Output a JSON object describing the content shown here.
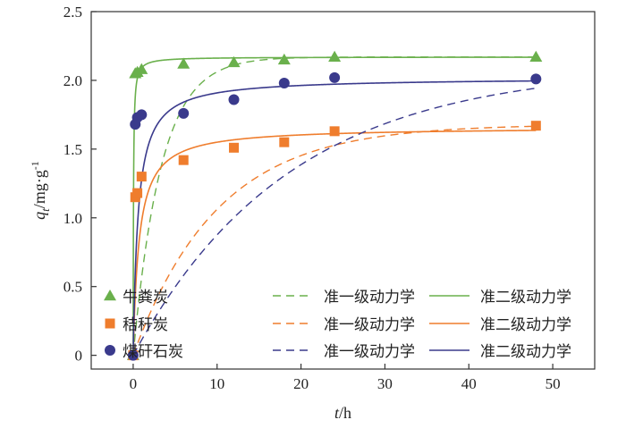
{
  "chart_data": {
    "type": "scatter",
    "xlabel": {
      "var": "t",
      "unit": "/h"
    },
    "ylabel": {
      "var": "q",
      "sub": "t",
      "unit": "/mg·g",
      "sup": "-1"
    },
    "xlim": [
      -5,
      55
    ],
    "ylim": [
      -0.1,
      2.5
    ],
    "xticks": [
      0,
      10,
      20,
      30,
      40,
      50
    ],
    "yticks": [
      0,
      0.5,
      1.0,
      1.5,
      2.0,
      2.5
    ],
    "yticklabels": [
      "0",
      "0.5",
      "1.0",
      "1.5",
      "2.0",
      "2.5"
    ],
    "grid": false,
    "legend_position": "bottom-left",
    "series": [
      {
        "name": "牛粪炭",
        "color": "#6ab04c",
        "marker": "triangle",
        "x": [
          0,
          0.25,
          0.5,
          1,
          6,
          12,
          18,
          24,
          48
        ],
        "y": [
          0,
          2.05,
          2.06,
          2.08,
          2.12,
          2.13,
          2.15,
          2.17,
          2.17
        ],
        "pfo": {
          "label": "准一级动力学",
          "qe": 2.17,
          "k": 0.3
        },
        "pso": {
          "label": "准二级动力学",
          "qe": 2.17,
          "k": 12
        }
      },
      {
        "name": "秸秆炭",
        "color": "#ef7d2d",
        "marker": "square",
        "x": [
          0,
          0.25,
          0.5,
          1,
          6,
          12,
          18,
          24,
          48
        ],
        "y": [
          0,
          1.15,
          1.18,
          1.3,
          1.42,
          1.51,
          1.55,
          1.63,
          1.67
        ],
        "pfo": {
          "label": "准一级动力学",
          "qe": 1.68,
          "k": 0.1
        },
        "pso": {
          "label": "准二级动力学",
          "qe": 1.66,
          "k": 0.85
        }
      },
      {
        "name": "煤矸石炭",
        "color": "#3a3a8c",
        "marker": "circle",
        "x": [
          0,
          0.25,
          0.5,
          1,
          6,
          12,
          18,
          24,
          48
        ],
        "y": [
          0,
          1.68,
          1.73,
          1.75,
          1.76,
          1.86,
          1.98,
          2.02,
          2.01
        ],
        "pfo": {
          "label": "准一级动力学",
          "qe": 2.1,
          "k": 0.054
        },
        "pso": {
          "label": "准二级动力学",
          "qe": 2.02,
          "k": 0.85
        }
      }
    ]
  }
}
